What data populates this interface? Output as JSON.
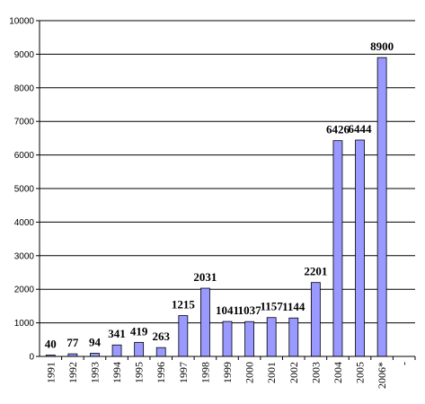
{
  "chart_data": {
    "type": "bar",
    "categories": [
      "1991",
      "1992",
      "1993",
      "1994",
      "1995",
      "1996",
      "1997",
      "1998",
      "1999",
      "2000",
      "2001",
      "2002",
      "2003",
      "2004",
      "2005",
      "2006*",
      "-"
    ],
    "values": [
      40,
      77,
      94,
      341,
      419,
      263,
      1215,
      2031,
      1041,
      1037,
      1157,
      1144,
      2201,
      6426,
      6444,
      8900,
      null
    ],
    "data_labels": [
      "40",
      "77",
      "94",
      "341",
      "419",
      "263",
      "1215",
      "2031",
      "1041",
      "1037",
      "1157",
      "1144",
      "2201",
      "6426",
      "6444",
      "8900",
      ""
    ],
    "title": "",
    "xlabel": "",
    "ylabel": "",
    "ylim": [
      0,
      10000
    ],
    "yticks": [
      "0",
      "1000",
      "2000",
      "3000",
      "4000",
      "5000",
      "6000",
      "7000",
      "8000",
      "9000",
      "10000"
    ],
    "grid": "horizontal",
    "legend": "none",
    "bar_color": "#9999ff",
    "bar_edge_color": "#000000"
  }
}
